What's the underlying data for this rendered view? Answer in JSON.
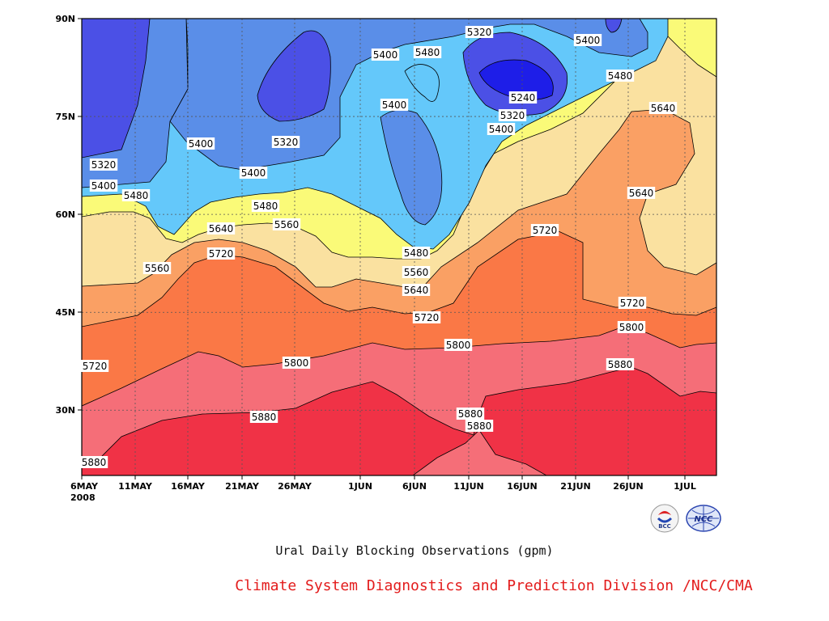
{
  "caption": "Ural Daily Blocking Observations (gpm)",
  "organization": "Climate System Diagnostics and Prediction Division /NCC/CMA",
  "logos": [
    {
      "name": "bcc-logo-icon",
      "text": "BCC"
    },
    {
      "name": "ncc-logo-icon",
      "text": "NCC"
    }
  ],
  "chart_data": {
    "type": "contour",
    "title": "Ural Daily Blocking Observations (gpm)",
    "x_year": "2008",
    "x_ticks": [
      "6MAY",
      "11MAY",
      "16MAY",
      "21MAY",
      "26MAY",
      "1JUN",
      "6JUN",
      "11JUN",
      "16JUN",
      "21JUN",
      "26JUN",
      "1JUL"
    ],
    "x_range": [
      "2008-05-06",
      "2008-07-04"
    ],
    "y_ticks": [
      "30N",
      "45N",
      "60N",
      "75N",
      "90N"
    ],
    "y_tick_values": [
      30,
      45,
      60,
      75,
      90
    ],
    "ylim": [
      20,
      90
    ],
    "contour_levels": [
      5240,
      5320,
      5400,
      5480,
      5560,
      5640,
      5720,
      5800,
      5880
    ],
    "fill_colors": {
      "below_5240": "#1e1ee8",
      "5240_5320": "#4b50e6",
      "5320_5400": "#5a8ee8",
      "5400_5480": "#64c8fa",
      "5480_5560": "#fafa78",
      "5560_5640": "#fae1a0",
      "5640_5720": "#faa064",
      "5720_5800": "#fa7846",
      "5800_5880": "#f56e78",
      "above_5880": "#f03246"
    },
    "contour_labels": [
      "5320",
      "5400",
      "5480",
      "5400",
      "5400",
      "5320",
      "5400",
      "5320",
      "5240",
      "5320",
      "5400",
      "5480",
      "5560",
      "5640",
      "5400",
      "5480",
      "5560",
      "5640",
      "5560",
      "5720",
      "5720",
      "5640",
      "5480",
      "5560",
      "5640",
      "5720",
      "5720",
      "5800",
      "5800",
      "5800",
      "5880",
      "5720",
      "5880",
      "5880",
      "5880",
      "5880"
    ],
    "grid": true
  }
}
